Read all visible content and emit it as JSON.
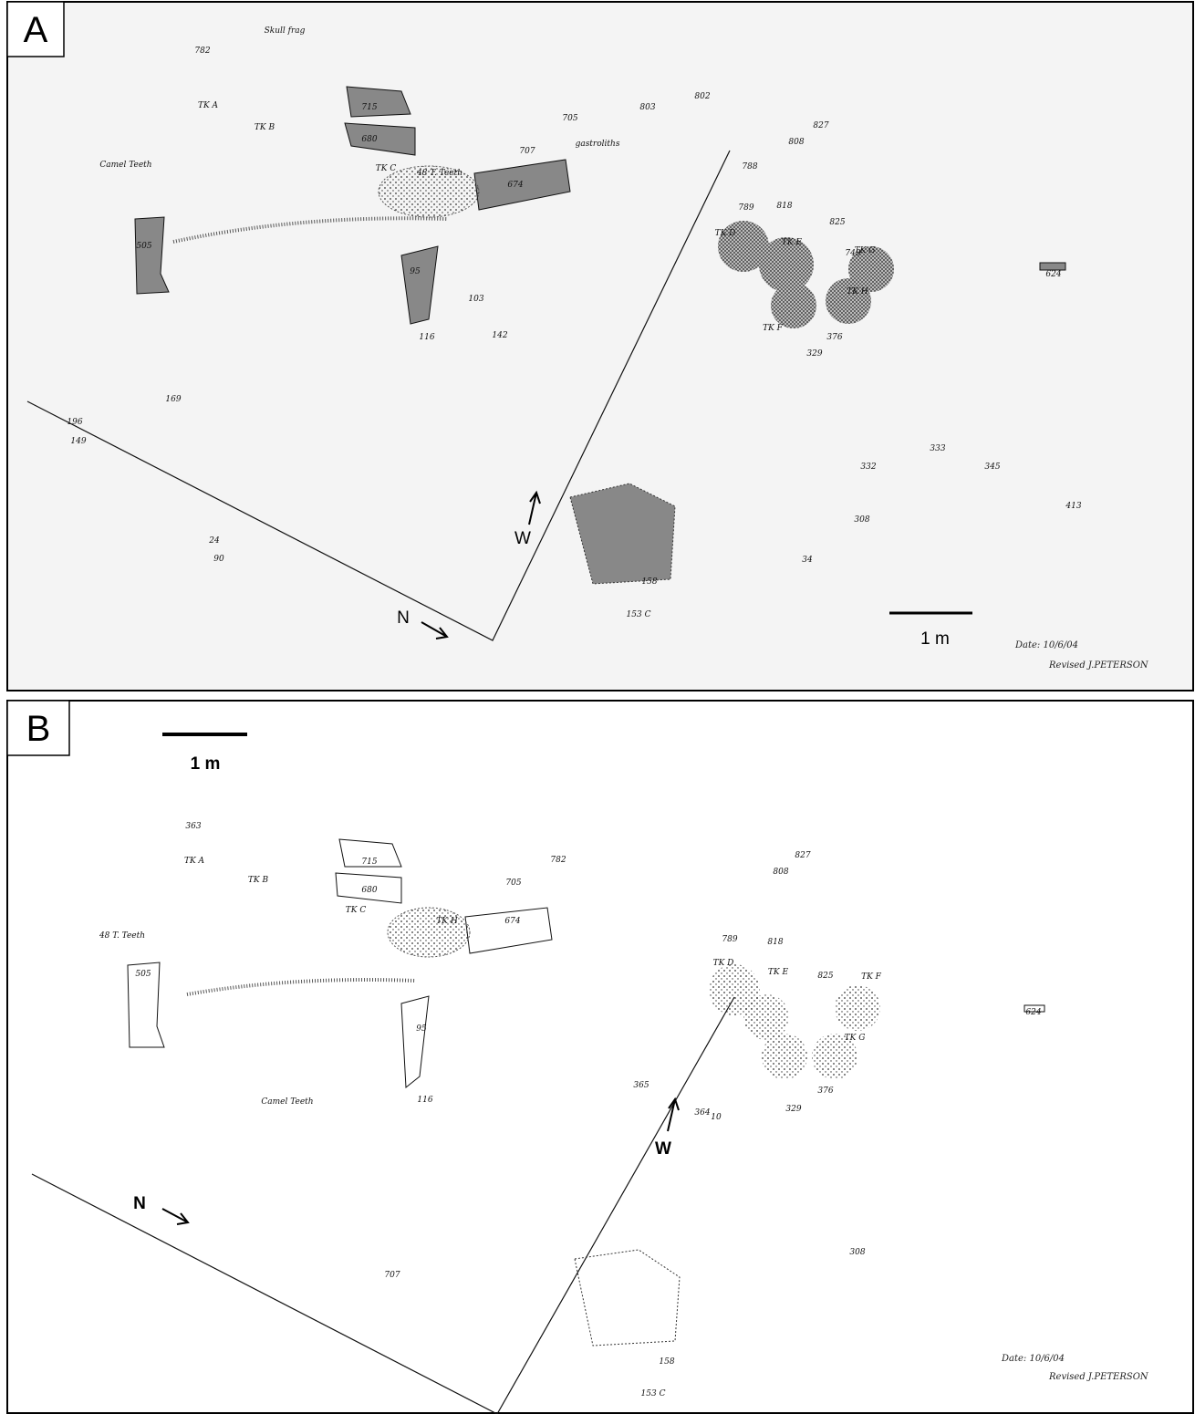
{
  "panels": [
    {
      "label": "A",
      "scale_bar": "1 m",
      "north": "N",
      "west": "W",
      "date": "Date: 10/6/04",
      "revised": "Revised J.PETERSON",
      "specimens": [
        "715",
        "680",
        "674",
        "505",
        "116",
        "95",
        "624",
        "808",
        "827",
        "825",
        "818",
        "789",
        "788",
        "802",
        "803",
        "705",
        "707",
        "749",
        "TK A",
        "TK B",
        "TK C",
        "TK D",
        "TK E",
        "TK G",
        "TK H",
        "TK F",
        "48 T. Teeth",
        "Skull frag",
        "Camel Teeth",
        "gastroliths",
        "782",
        "142",
        "103",
        "169",
        "196",
        "149",
        "90",
        "24",
        "308",
        "34",
        "332",
        "333",
        "345",
        "413",
        "329",
        "376",
        "158",
        "153 C"
      ]
    },
    {
      "label": "B",
      "scale_bar": "1 m",
      "north": "N",
      "west": "W",
      "date": "Date: 10/6/04",
      "revised": "Revised J.PETERSON",
      "specimens": [
        "715",
        "680",
        "674",
        "505",
        "116",
        "95",
        "624",
        "808",
        "827",
        "825",
        "818",
        "789",
        "308",
        "329",
        "376",
        "158",
        "153 C",
        "TK A",
        "TK B",
        "TK C",
        "TK D",
        "TK E",
        "TK F",
        "TK G",
        "TK H",
        "48 T. Teeth",
        "Camel Teeth",
        "10",
        "364",
        "365",
        "363",
        "782",
        "705",
        "707"
      ]
    }
  ]
}
